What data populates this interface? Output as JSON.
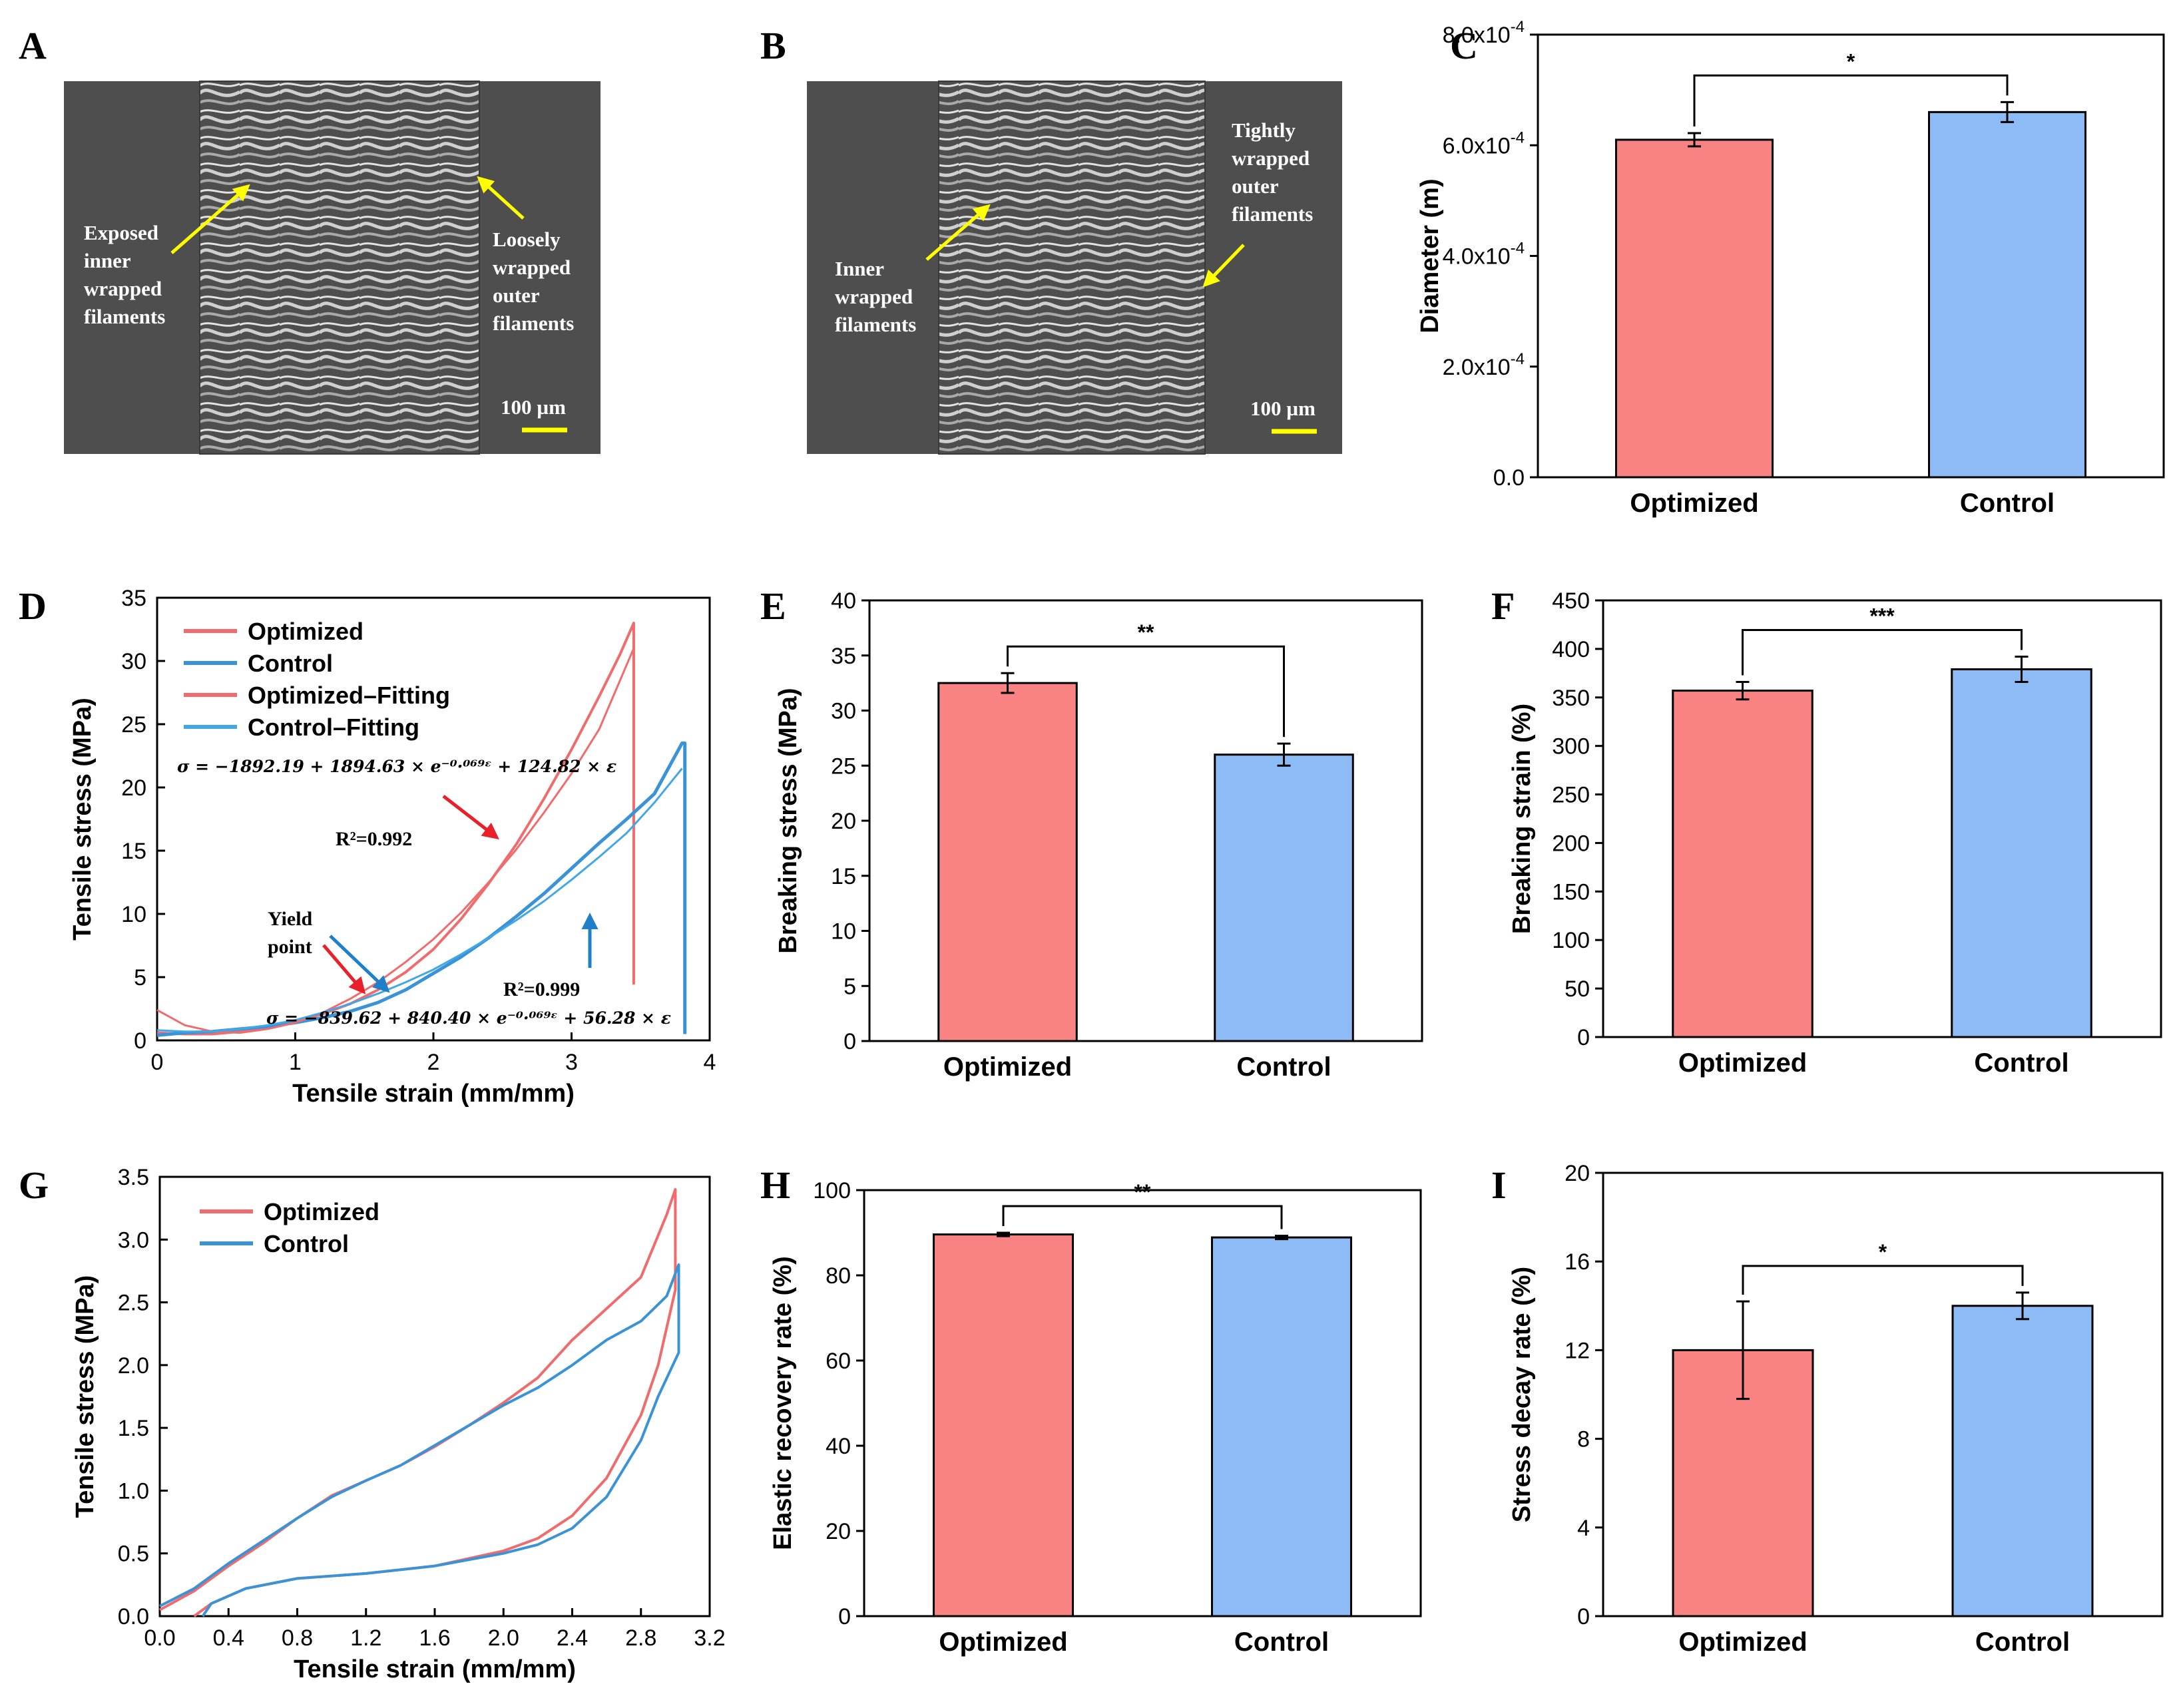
{
  "colors": {
    "optimized": "#f98383",
    "control": "#8dbbf5",
    "optimized_line": "#f06c6c",
    "control_line": "#3a93d6",
    "red_arrow": "#e8202a",
    "blue_arrow": "#1f7fc9",
    "yellow": "#ffff00",
    "sem_bg": "#4e4e4e"
  },
  "panelA": {
    "label": "A",
    "note_left": [
      "Exposed",
      "inner",
      "wrapped",
      "filaments"
    ],
    "note_right": [
      "Loosely",
      "wrapped",
      "outer",
      "filaments"
    ],
    "scale": "100 µm"
  },
  "panelB": {
    "label": "B",
    "note_left": [
      "Inner",
      "wrapped",
      "filaments"
    ],
    "note_right": [
      "Tightly",
      "wrapped",
      "outer",
      "filaments"
    ],
    "scale": "100 µm"
  },
  "panelD": {
    "label": "D",
    "legend": [
      "Optimized",
      "Control",
      "Optimized–Fitting",
      "Control–Fitting"
    ],
    "eq_top": "σ = −1892.19 + 1894.63 × e⁻⁰·⁰⁶⁹ᵋ + 124.82 × ε",
    "eq_bottom": "σ = −839.62 + 840.40 × e⁻⁰·⁰⁶⁹ᵋ + 56.28 × ε",
    "r2_top": "R²=0.992",
    "r2_bottom": "R²=0.999",
    "yield_line1": "Yield",
    "yield_line2": "point"
  },
  "panelG": {
    "label": "G",
    "legend": [
      "Optimized",
      "Control"
    ]
  },
  "chart_data": [
    {
      "panel": "C",
      "type": "bar",
      "categories": [
        "Optimized",
        "Control"
      ],
      "values": [
        0.00061,
        0.00066
      ],
      "errors": [
        1.2e-05,
        1.8e-05
      ],
      "xlabel": "",
      "ylabel": "Diameter (m)",
      "ylim": [
        0,
        0.0008
      ],
      "ytick_values": [
        0,
        0.0002,
        0.0004,
        0.0006,
        0.0008
      ],
      "yticks": [
        {
          "m": "0.0",
          "e": ""
        },
        {
          "m": "2.0x10",
          "e": "-4"
        },
        {
          "m": "4.0x10",
          "e": "-4"
        },
        {
          "m": "6.0x10",
          "e": "-4"
        },
        {
          "m": "8.0x10",
          "e": "-4"
        }
      ],
      "significance": "*"
    },
    {
      "panel": "D",
      "type": "line",
      "title": "",
      "xlabel": "Tensile strain (mm/mm)",
      "ylabel": "Tensile stress (MPa)",
      "xlim": [
        0,
        4
      ],
      "ylim": [
        0,
        35
      ],
      "xticks": [
        0,
        1,
        2,
        3,
        4
      ],
      "yticks": [
        0,
        5,
        10,
        15,
        20,
        25,
        30,
        35
      ],
      "series": [
        {
          "name": "Optimized",
          "x": [
            0,
            0.2,
            0.4,
            0.6,
            0.8,
            1.0,
            1.2,
            1.4,
            1.6,
            1.8,
            2.0,
            2.2,
            2.4,
            2.6,
            2.8,
            3.0,
            3.2,
            3.35,
            3.45,
            3.45,
            3.45
          ],
          "y": [
            0.6,
            0.5,
            0.5,
            0.7,
            1.0,
            1.5,
            2.1,
            2.9,
            4.0,
            5.4,
            7.2,
            9.6,
            12.4,
            15.5,
            19.1,
            23.0,
            27.2,
            30.5,
            33.0,
            4.5,
            33.0
          ]
        },
        {
          "name": "Control",
          "x": [
            0,
            0.2,
            0.4,
            0.6,
            0.8,
            1.0,
            1.2,
            1.4,
            1.6,
            1.8,
            2.0,
            2.2,
            2.4,
            2.6,
            2.8,
            3.0,
            3.2,
            3.4,
            3.6,
            3.8,
            3.82,
            3.82
          ],
          "y": [
            0.4,
            0.6,
            0.7,
            0.9,
            1.1,
            1.4,
            1.8,
            2.3,
            3.0,
            4.0,
            5.3,
            6.6,
            8.1,
            9.8,
            11.6,
            13.6,
            15.6,
            17.5,
            19.5,
            23.5,
            23.5,
            0.5
          ]
        },
        {
          "name": "Optimized–Fitting",
          "x": [
            0,
            0.2,
            0.4,
            0.6,
            0.8,
            1.0,
            1.2,
            1.4,
            1.6,
            1.8,
            2.0,
            2.2,
            2.4,
            2.6,
            2.8,
            3.0,
            3.2,
            3.45
          ],
          "y": [
            2.4,
            1.2,
            0.7,
            0.6,
            0.9,
            1.4,
            2.2,
            3.3,
            4.6,
            6.2,
            8.0,
            10.1,
            12.5,
            15.1,
            18.0,
            21.1,
            24.6,
            31.0
          ]
        },
        {
          "name": "Control–Fitting",
          "x": [
            0,
            0.2,
            0.4,
            0.6,
            0.8,
            1.0,
            1.2,
            1.4,
            1.6,
            1.8,
            2.0,
            2.2,
            2.4,
            2.6,
            2.8,
            3.0,
            3.2,
            3.4,
            3.6,
            3.8
          ],
          "y": [
            0.8,
            0.7,
            0.7,
            0.9,
            1.2,
            1.6,
            2.2,
            2.9,
            3.7,
            4.6,
            5.6,
            6.8,
            8.1,
            9.5,
            11.0,
            12.7,
            14.5,
            16.4,
            18.8,
            21.5
          ]
        }
      ]
    },
    {
      "panel": "E",
      "type": "bar",
      "categories": [
        "Optimized",
        "Control"
      ],
      "values": [
        32.5,
        26.0
      ],
      "errors": [
        0.9,
        1.0
      ],
      "xlabel": "",
      "ylabel": "Breaking stress (MPa)",
      "ylim": [
        0,
        40
      ],
      "yticks": [
        0,
        5,
        10,
        15,
        20,
        25,
        30,
        35,
        40
      ],
      "significance": "**"
    },
    {
      "panel": "F",
      "type": "bar",
      "categories": [
        "Optimized",
        "Control"
      ],
      "values": [
        357,
        379
      ],
      "errors": [
        9,
        13
      ],
      "xlabel": "",
      "ylabel": "Breaking strain (%)",
      "ylim": [
        0,
        450
      ],
      "yticks": [
        0,
        50,
        100,
        150,
        200,
        250,
        300,
        350,
        400,
        450
      ],
      "significance": "***"
    },
    {
      "panel": "G",
      "type": "line",
      "xlabel": "Tensile strain (mm/mm)",
      "ylabel": "Tensile stress (MPa)",
      "xlim": [
        0,
        3.2
      ],
      "ylim": [
        0,
        3.5
      ],
      "xticks": [
        "0.0",
        "0.4",
        "0.8",
        "1.2",
        "1.6",
        "2.0",
        "2.4",
        "2.8",
        "3.2"
      ],
      "yticks": [
        "0.0",
        "0.5",
        "1.0",
        "1.5",
        "2.0",
        "2.5",
        "3.0",
        "3.5"
      ],
      "series": [
        {
          "name": "Optimized",
          "x": [
            0,
            0.2,
            0.4,
            0.6,
            0.8,
            1.0,
            1.2,
            1.4,
            1.6,
            1.8,
            2.0,
            2.2,
            2.4,
            2.6,
            2.8,
            2.95,
            3.0,
            3.0,
            2.9,
            2.8,
            2.6,
            2.4,
            2.2,
            2.0,
            1.6,
            1.2,
            0.8,
            0.5,
            0.3,
            0.2
          ],
          "y": [
            0.05,
            0.2,
            0.4,
            0.58,
            0.78,
            0.96,
            1.08,
            1.2,
            1.35,
            1.52,
            1.7,
            1.9,
            2.2,
            2.45,
            2.7,
            3.2,
            3.4,
            2.6,
            2.0,
            1.6,
            1.1,
            0.8,
            0.62,
            0.52,
            0.4,
            0.34,
            0.3,
            0.22,
            0.1,
            0.0
          ]
        },
        {
          "name": "Control",
          "x": [
            0,
            0.2,
            0.4,
            0.6,
            0.8,
            1.0,
            1.2,
            1.4,
            1.6,
            1.8,
            2.0,
            2.2,
            2.4,
            2.6,
            2.8,
            2.95,
            3.02,
            3.02,
            2.9,
            2.8,
            2.6,
            2.4,
            2.2,
            2.0,
            1.6,
            1.2,
            0.8,
            0.5,
            0.3,
            0.25
          ],
          "y": [
            0.08,
            0.22,
            0.42,
            0.6,
            0.78,
            0.95,
            1.08,
            1.2,
            1.36,
            1.52,
            1.68,
            1.82,
            2.0,
            2.2,
            2.35,
            2.55,
            2.8,
            2.1,
            1.75,
            1.4,
            0.95,
            0.7,
            0.57,
            0.5,
            0.4,
            0.34,
            0.3,
            0.22,
            0.1,
            0.0
          ]
        }
      ]
    },
    {
      "panel": "H",
      "type": "bar",
      "categories": [
        "Optimized",
        "Control"
      ],
      "values": [
        89.6,
        88.9
      ],
      "errors": [
        0.4,
        0.4
      ],
      "xlabel": "",
      "ylabel": "Elastic recovery rate (%)",
      "ylim": [
        0,
        100
      ],
      "yticks": [
        0,
        20,
        40,
        60,
        80,
        100
      ],
      "significance": "**"
    },
    {
      "panel": "I",
      "type": "bar",
      "categories": [
        "Optimized",
        "Control"
      ],
      "values": [
        12.0,
        14.0
      ],
      "errors": [
        2.2,
        0.6
      ],
      "xlabel": "",
      "ylabel": "Stress decay rate (%)",
      "ylim": [
        0,
        20
      ],
      "yticks": [
        0,
        4,
        8,
        12,
        16,
        20
      ],
      "significance": "*"
    }
  ]
}
